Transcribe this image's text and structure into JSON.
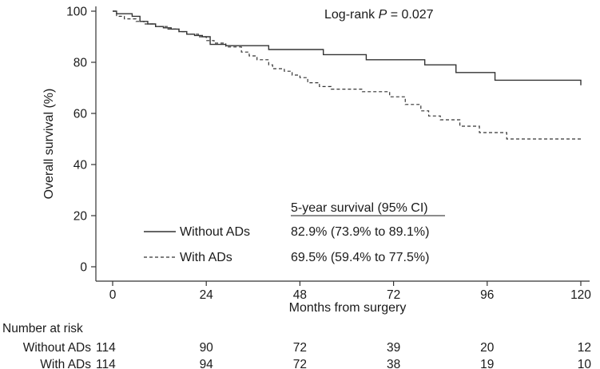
{
  "chart_data": {
    "type": "line",
    "xlabel": "Months from surgery",
    "ylabel": "Overall survival (%)",
    "xlim": [
      0,
      120
    ],
    "ylim": [
      0,
      100
    ],
    "x_ticks": [
      0,
      24,
      48,
      72,
      96,
      120
    ],
    "y_ticks": [
      0,
      20,
      40,
      60,
      80,
      100
    ],
    "grid": false,
    "annotation_prefix": "Log-rank ",
    "annotation_p": "P",
    "annotation_value": " = 0.027",
    "legend_header": "5-year survival (95% CI)",
    "legend_placement": "bottom-center",
    "series": [
      {
        "name": "Without ADs",
        "style": "solid",
        "five_year_survival": "82.9% (73.9% to 89.1%)",
        "x": [
          0,
          1,
          5,
          7,
          9,
          11,
          13,
          15,
          17,
          19,
          21,
          23,
          25,
          29,
          40,
          54,
          65,
          80,
          88,
          98,
          120
        ],
        "y": [
          100,
          99,
          98,
          96,
          95,
          94,
          93.5,
          93,
          92,
          91,
          90.5,
          90,
          87,
          86.5,
          85,
          83,
          81,
          79,
          76,
          73,
          71
        ]
      },
      {
        "name": "With ADs",
        "style": "dashed",
        "five_year_survival": "69.5% (59.4% to 77.5%)",
        "x": [
          0,
          1,
          3,
          6,
          8,
          11,
          14,
          17,
          19,
          22,
          24,
          26,
          29,
          33,
          35,
          37,
          40,
          41,
          44,
          46,
          48,
          50,
          53,
          56,
          64,
          71,
          75,
          79,
          81,
          84,
          89,
          94,
          101,
          120
        ],
        "y": [
          100,
          98,
          97,
          96,
          95,
          94,
          93,
          92,
          91,
          90,
          88.5,
          87.5,
          86,
          84,
          82.5,
          81,
          79,
          77.5,
          76.5,
          75,
          74,
          72,
          70.5,
          69.5,
          68.5,
          66.5,
          63.5,
          61,
          59,
          57.5,
          55,
          52.5,
          50,
          50
        ]
      }
    ],
    "risk_table": {
      "title": "Number at risk",
      "rows": [
        {
          "label": "Without ADs",
          "values": [
            "114",
            "90",
            "72",
            "39",
            "20",
            "12"
          ]
        },
        {
          "label": "With ADs",
          "values": [
            "114",
            "94",
            "72",
            "38",
            "19",
            "10"
          ]
        }
      ]
    }
  }
}
